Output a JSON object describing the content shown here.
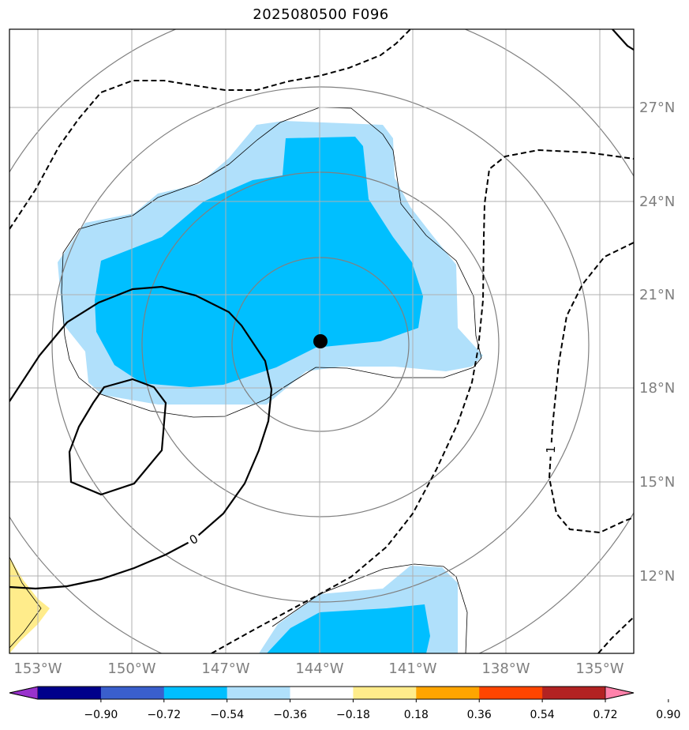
{
  "title": "2025080500 F096",
  "map": {
    "lon_labels": [
      "153°W",
      "150°W",
      "147°W",
      "144°W",
      "141°W",
      "138°W",
      "135°W"
    ],
    "lat_labels": [
      "27°N",
      "24°N",
      "21°N",
      "18°N",
      "15°N",
      "12°N"
    ],
    "contour_labels": {
      "solid": "0",
      "dashed": "1"
    },
    "center_marker": {
      "lon": -144.0,
      "lat": 19.5
    }
  },
  "colorbar": {
    "ticks": [
      "−0.90",
      "−0.72",
      "−0.54",
      "−0.36",
      "−0.18",
      "0.18",
      "0.36",
      "0.54",
      "0.72",
      "0.90"
    ],
    "colors": [
      "#9932cc",
      "#00008b",
      "#3a5fcd",
      "#00bfff",
      "#b0e0fb",
      "#ffffff",
      "#ffec8b",
      "#ffa500",
      "#ff4500",
      "#b22222",
      "#ff82ab"
    ]
  }
}
